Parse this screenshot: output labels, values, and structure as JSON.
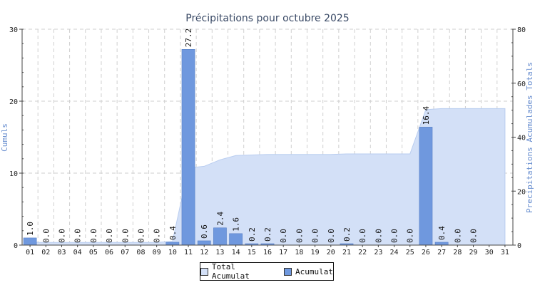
{
  "chart_data": {
    "type": "bar",
    "title": "Précipitations pour octubre 2025",
    "ylabel": "Cumuls",
    "y2label": "Precipitations Acumulades Totals",
    "categories": [
      "01",
      "02",
      "03",
      "04",
      "05",
      "06",
      "07",
      "08",
      "09",
      "10",
      "11",
      "12",
      "13",
      "14",
      "15",
      "16",
      "17",
      "18",
      "19",
      "20",
      "21",
      "22",
      "23",
      "24",
      "25",
      "26",
      "27",
      "28",
      "29",
      "30",
      "31"
    ],
    "ylim": [
      0,
      30
    ],
    "yticks": [
      0,
      10,
      20,
      30
    ],
    "y2lim": [
      0,
      80
    ],
    "y2ticks": [
      0,
      20,
      40,
      60,
      80
    ],
    "grid": true,
    "legend_position": "bottom",
    "series": [
      {
        "name": "Acumulat",
        "type": "bar",
        "axis": "left",
        "color": "#6f98de",
        "values": [
          1.0,
          0.0,
          0.0,
          0.0,
          0.0,
          0.0,
          0.0,
          0.0,
          0.0,
          0.4,
          27.2,
          0.6,
          2.4,
          1.6,
          0.2,
          0.2,
          0.0,
          0.0,
          0.0,
          0.0,
          0.2,
          0.0,
          0.0,
          0.0,
          0.0,
          16.4,
          0.4,
          0.0,
          0.0,
          null,
          null
        ],
        "labels": [
          "1.0",
          "0.0",
          "0.0",
          "0.0",
          "0.0",
          "0.0",
          "0.0",
          "0.0",
          "0.0",
          "0.4",
          "27.2",
          "0.6",
          "2.4",
          "1.6",
          "0.2",
          "0.2",
          "0.0",
          "0.0",
          "0.0",
          "0.0",
          "0.2",
          "0.0",
          "0.0",
          "0.0",
          "0.0",
          "16.4",
          "0.4",
          "0.0",
          "0.0",
          "",
          ""
        ]
      },
      {
        "name": "Total Acumulat",
        "type": "area",
        "axis": "right",
        "color": "#d3e0f7",
        "line_color": "#b9cdf0",
        "values": [
          1.0,
          1.0,
          1.0,
          1.0,
          1.0,
          1.0,
          1.0,
          1.0,
          1.0,
          1.4,
          28.6,
          29.2,
          31.6,
          33.2,
          33.4,
          33.6,
          33.6,
          33.6,
          33.6,
          33.6,
          33.8,
          33.8,
          33.8,
          33.8,
          33.8,
          50.2,
          50.6,
          50.6,
          50.6,
          50.6,
          50.6
        ]
      }
    ]
  },
  "legend": {
    "items": [
      {
        "label": "Total Acumulat",
        "color": "#d3e0f7"
      },
      {
        "label": "Acumulat",
        "color": "#6f98de"
      }
    ]
  }
}
